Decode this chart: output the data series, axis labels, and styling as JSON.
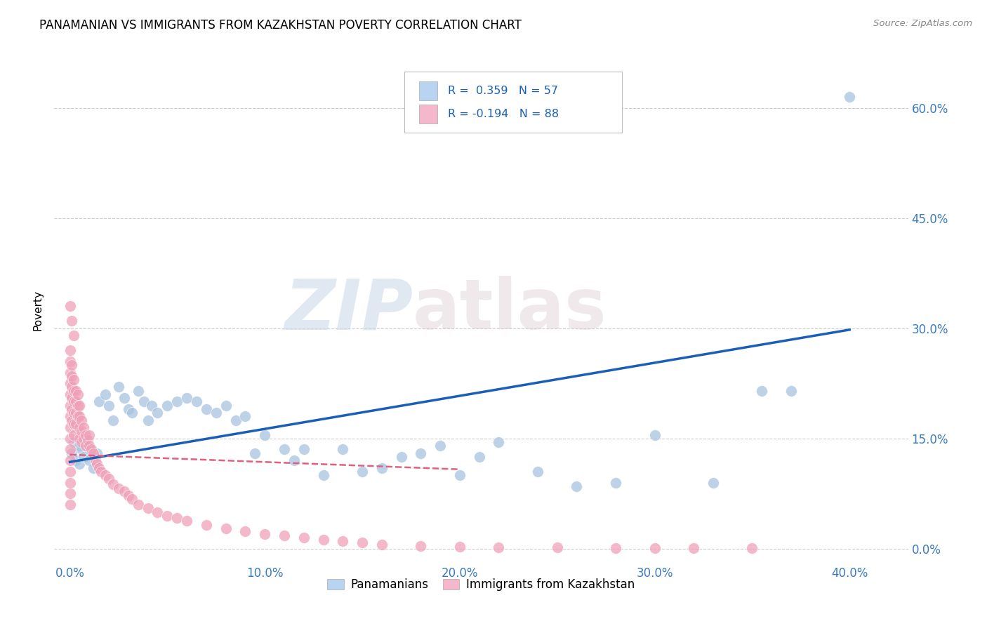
{
  "title": "PANAMANIAN VS IMMIGRANTS FROM KAZAKHSTAN POVERTY CORRELATION CHART",
  "source": "Source: ZipAtlas.com",
  "xlabel_values": [
    0.0,
    0.1,
    0.2,
    0.3,
    0.4
  ],
  "ylabel_values": [
    0.0,
    0.15,
    0.3,
    0.45,
    0.6
  ],
  "ylabel": "Poverty",
  "xlim": [
    -0.008,
    0.43
  ],
  "ylim": [
    -0.02,
    0.67
  ],
  "blue_R": 0.359,
  "blue_N": 57,
  "pink_R": -0.194,
  "pink_N": 88,
  "blue_color": "#a8c4e0",
  "pink_color": "#f0a0b8",
  "blue_line_color": "#1a5eb8",
  "pink_line_color": "#e06080",
  "grid_color": "#cccccc",
  "background_color": "#ffffff",
  "watermark_zip": "ZIP",
  "watermark_atlas": "atlas",
  "legend_blue_label": "Panamanians",
  "legend_pink_label": "Immigrants from Kazakhstan",
  "blue_scatter_x": [
    0.001,
    0.002,
    0.003,
    0.005,
    0.005,
    0.006,
    0.007,
    0.008,
    0.01,
    0.01,
    0.012,
    0.014,
    0.015,
    0.018,
    0.02,
    0.022,
    0.025,
    0.028,
    0.03,
    0.032,
    0.035,
    0.038,
    0.04,
    0.042,
    0.045,
    0.05,
    0.055,
    0.06,
    0.065,
    0.07,
    0.075,
    0.08,
    0.085,
    0.09,
    0.095,
    0.1,
    0.11,
    0.115,
    0.12,
    0.13,
    0.14,
    0.15,
    0.16,
    0.17,
    0.18,
    0.19,
    0.2,
    0.21,
    0.22,
    0.24,
    0.26,
    0.28,
    0.3,
    0.33,
    0.355,
    0.37,
    0.4
  ],
  "blue_scatter_y": [
    0.13,
    0.145,
    0.12,
    0.115,
    0.14,
    0.135,
    0.125,
    0.15,
    0.12,
    0.135,
    0.11,
    0.13,
    0.2,
    0.21,
    0.195,
    0.175,
    0.22,
    0.205,
    0.19,
    0.185,
    0.215,
    0.2,
    0.175,
    0.195,
    0.185,
    0.195,
    0.2,
    0.205,
    0.2,
    0.19,
    0.185,
    0.195,
    0.175,
    0.18,
    0.13,
    0.155,
    0.135,
    0.12,
    0.135,
    0.1,
    0.135,
    0.105,
    0.11,
    0.125,
    0.13,
    0.14,
    0.1,
    0.125,
    0.145,
    0.105,
    0.085,
    0.09,
    0.155,
    0.09,
    0.215,
    0.215,
    0.615
  ],
  "blue_line_x": [
    0.0,
    0.4
  ],
  "blue_line_y": [
    0.118,
    0.298
  ],
  "pink_line_x": [
    0.0,
    0.2
  ],
  "pink_line_y": [
    0.128,
    0.108
  ],
  "pink_scatter_x": [
    0.0,
    0.0,
    0.0,
    0.0,
    0.0,
    0.0,
    0.0,
    0.0,
    0.0,
    0.0,
    0.0,
    0.0,
    0.0,
    0.0,
    0.0,
    0.001,
    0.001,
    0.001,
    0.001,
    0.001,
    0.001,
    0.002,
    0.002,
    0.002,
    0.002,
    0.002,
    0.002,
    0.003,
    0.003,
    0.003,
    0.003,
    0.004,
    0.004,
    0.004,
    0.005,
    0.005,
    0.005,
    0.005,
    0.006,
    0.006,
    0.006,
    0.007,
    0.007,
    0.008,
    0.008,
    0.009,
    0.01,
    0.01,
    0.011,
    0.012,
    0.013,
    0.014,
    0.015,
    0.016,
    0.018,
    0.02,
    0.022,
    0.025,
    0.028,
    0.03,
    0.032,
    0.035,
    0.04,
    0.045,
    0.05,
    0.055,
    0.06,
    0.07,
    0.08,
    0.09,
    0.1,
    0.11,
    0.12,
    0.13,
    0.14,
    0.15,
    0.16,
    0.18,
    0.2,
    0.22,
    0.25,
    0.28,
    0.3,
    0.32,
    0.35,
    0.0,
    0.001,
    0.002
  ],
  "pink_scatter_y": [
    0.27,
    0.255,
    0.24,
    0.225,
    0.21,
    0.195,
    0.18,
    0.165,
    0.15,
    0.135,
    0.12,
    0.105,
    0.09,
    0.075,
    0.06,
    0.25,
    0.235,
    0.22,
    0.205,
    0.19,
    0.175,
    0.23,
    0.215,
    0.2,
    0.185,
    0.17,
    0.155,
    0.215,
    0.2,
    0.185,
    0.17,
    0.21,
    0.195,
    0.18,
    0.195,
    0.18,
    0.165,
    0.15,
    0.175,
    0.16,
    0.145,
    0.165,
    0.15,
    0.155,
    0.14,
    0.148,
    0.155,
    0.14,
    0.135,
    0.13,
    0.12,
    0.115,
    0.11,
    0.105,
    0.1,
    0.095,
    0.088,
    0.082,
    0.078,
    0.072,
    0.068,
    0.06,
    0.055,
    0.05,
    0.045,
    0.042,
    0.038,
    0.032,
    0.028,
    0.024,
    0.02,
    0.018,
    0.015,
    0.012,
    0.01,
    0.008,
    0.006,
    0.004,
    0.003,
    0.002,
    0.002,
    0.001,
    0.001,
    0.001,
    0.001,
    0.33,
    0.31,
    0.29
  ]
}
